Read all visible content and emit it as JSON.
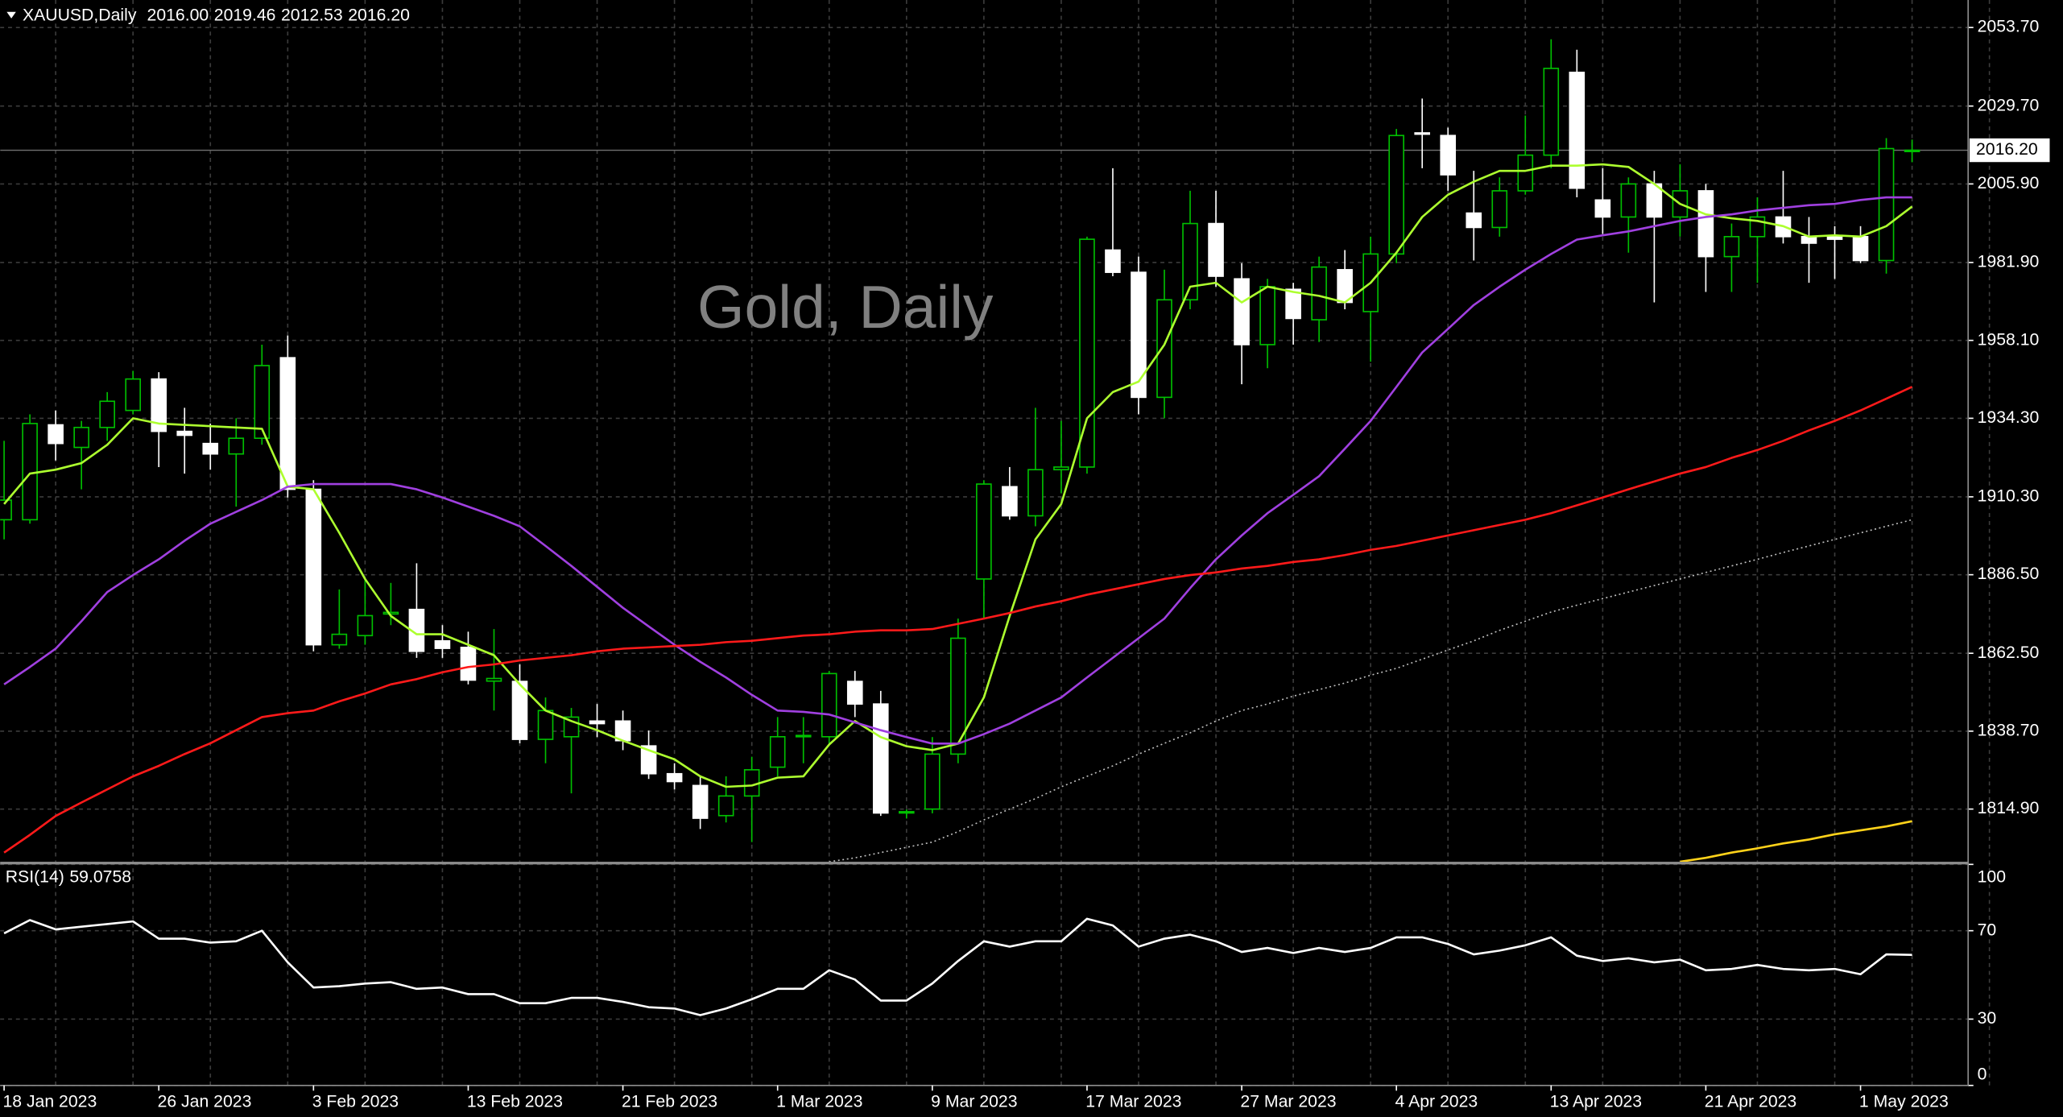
{
  "chart_data": [
    {
      "type": "candlestick",
      "title": "Gold, Daily",
      "symbol": "XAUUSD,Daily",
      "ohlc_labels": [
        "2016.00",
        "2019.46",
        "2012.53",
        "2016.20"
      ],
      "categories": [
        "18 Jan 2023",
        null,
        null,
        null,
        null,
        null,
        "26 Jan 2023",
        null,
        null,
        null,
        null,
        null,
        "3 Feb 2023",
        null,
        null,
        null,
        null,
        null,
        "13 Feb 2023",
        null,
        null,
        null,
        null,
        null,
        "21 Feb 2023",
        null,
        null,
        null,
        null,
        null,
        "1 Mar 2023",
        null,
        null,
        null,
        null,
        null,
        "9 Mar 2023",
        null,
        null,
        null,
        null,
        null,
        "17 Mar 2023",
        null,
        null,
        null,
        null,
        null,
        "27 Mar 2023",
        null,
        null,
        null,
        null,
        null,
        "4 Apr 2023",
        null,
        null,
        null,
        null,
        null,
        "13 Apr 2023",
        null,
        null,
        null,
        null,
        null,
        "21 Apr 2023",
        null,
        null,
        null,
        null,
        null,
        "1 May 2023",
        null,
        null
      ],
      "open": [
        1903.3,
        1903.3,
        1932.3,
        1925.4,
        1931.5,
        1936.7,
        1946.3,
        1930.3,
        1926.6,
        1923.4,
        1928.2,
        1952.8,
        1912.6,
        1865.1,
        1867.9,
        1874.5,
        1875.9,
        1866.3,
        1864.3,
        1854.0,
        1853.9,
        1836.2,
        1837.0,
        1841.8,
        1841.8,
        1834.2,
        1825.7,
        1822.1,
        1812.9,
        1818.9,
        1827.7,
        1837.0,
        1837.0,
        1853.9,
        1847.0,
        1813.7,
        1814.9,
        1831.7,
        1885.2,
        1913.4,
        1904.5,
        1918.6,
        1919.4,
        1985.7,
        1978.9,
        1940.7,
        1970.5,
        1993.8,
        1976.9,
        1956.8,
        1973.7,
        1964.4,
        1979.7,
        1966.9,
        1984.5,
        2021.5,
        2020.7,
        1997.0,
        1992.6,
        2003.8,
        2014.7,
        2040.0,
        2001.0,
        1995.8,
        2005.9,
        1995.8,
        2003.8,
        1983.7,
        1989.8,
        1995.8,
        1989.8,
        1989.8,
        1989.8,
        1982.5,
        2016.0
      ],
      "high": [
        1927.4,
        1935.5,
        1936.7,
        1933.5,
        1942.3,
        1948.8,
        1948.4,
        1937.5,
        1932.7,
        1934.3,
        1956.8,
        1959.6,
        1915.4,
        1882.0,
        1885.2,
        1884.0,
        1890.0,
        1871.1,
        1869.1,
        1869.9,
        1859.1,
        1849.0,
        1845.8,
        1847.0,
        1845.0,
        1838.9,
        1828.9,
        1824.9,
        1824.9,
        1830.9,
        1843.0,
        1843.0,
        1857.1,
        1857.1,
        1851.0,
        1814.8,
        1836.9,
        1873.1,
        1915.4,
        1919.4,
        1937.5,
        1933.5,
        1989.8,
        2010.7,
        1983.7,
        1979.7,
        2003.8,
        2003.8,
        1981.7,
        1976.9,
        1975.7,
        1983.7,
        1985.7,
        1989.8,
        2022.7,
        2032.0,
        2023.1,
        2009.9,
        2007.9,
        2026.8,
        2050.1,
        2046.9,
        2010.7,
        2007.9,
        2009.9,
        2011.9,
        2005.9,
        1993.8,
        2001.8,
        2009.9,
        1995.8,
        1993.0,
        1993.0,
        2019.9,
        2019.46
      ],
      "low": [
        1897.3,
        1902.1,
        1921.4,
        1912.6,
        1927.4,
        1935.5,
        1919.4,
        1917.4,
        1918.6,
        1907.3,
        1926.2,
        1910.1,
        1863.1,
        1863.9,
        1865.1,
        1871.1,
        1861.1,
        1861.1,
        1853.0,
        1845.0,
        1835.0,
        1828.9,
        1819.7,
        1836.9,
        1832.9,
        1824.1,
        1820.9,
        1808.8,
        1810.8,
        1804.8,
        1824.9,
        1828.9,
        1835.0,
        1843.0,
        1812.8,
        1812.0,
        1813.6,
        1828.9,
        1873.1,
        1903.3,
        1901.3,
        1911.4,
        1917.4,
        1977.7,
        1935.5,
        1934.3,
        1967.6,
        1974.5,
        1944.7,
        1949.6,
        1956.8,
        1957.6,
        1967.6,
        1951.6,
        1981.7,
        2010.7,
        2003.8,
        1982.5,
        1989.8,
        2002.6,
        2010.7,
        2001.8,
        1990.6,
        1984.9,
        1969.7,
        1989.8,
        1972.9,
        1972.9,
        1975.7,
        1987.7,
        1975.7,
        1976.9,
        1981.7,
        1978.5,
        2012.53
      ],
      "close": [
        1909.3,
        1932.7,
        1926.6,
        1931.5,
        1939.5,
        1946.3,
        1930.3,
        1929.1,
        1923.4,
        1928.2,
        1950.4,
        1912.6,
        1865.1,
        1868.3,
        1874.0,
        1875.0,
        1863.1,
        1864.0,
        1854.3,
        1854.8,
        1836.2,
        1845.0,
        1843.0,
        1841.0,
        1835.8,
        1825.7,
        1823.3,
        1812.1,
        1818.9,
        1826.9,
        1837.0,
        1837.4,
        1856.3,
        1847.0,
        1813.7,
        1814.1,
        1831.7,
        1867.1,
        1914.2,
        1904.5,
        1918.6,
        1919.4,
        1989.0,
        1978.9,
        1940.7,
        1970.5,
        1993.8,
        1977.7,
        1956.8,
        1974.5,
        1964.8,
        1980.5,
        1969.7,
        1984.5,
        2020.7,
        2021.1,
        2008.7,
        1992.6,
        2003.8,
        2014.7,
        2041.2,
        2004.6,
        1995.8,
        2005.9,
        1995.8,
        2003.8,
        1983.7,
        1989.8,
        1995.8,
        1989.8,
        1987.8,
        1989.0,
        1982.5,
        2016.7,
        2016.2
      ],
      "bull_color": "#00c000",
      "bear_color": "#ffffff",
      "series": [
        {
          "color": "#adff2f",
          "values": [
            1908.1,
            1917.4,
            1918.6,
            1920.6,
            1926.2,
            1934.3,
            1932.7,
            1932.3,
            1931.9,
            1931.5,
            1931.1,
            1913.4,
            1912.6,
            1899.3,
            1885.2,
            1873.9,
            1868.3,
            1868.3,
            1865.1,
            1861.9,
            1853.0,
            1845.0,
            1841.8,
            1839.0,
            1835.8,
            1832.9,
            1830.1,
            1824.9,
            1821.7,
            1822.1,
            1824.5,
            1824.9,
            1834.6,
            1841.8,
            1836.9,
            1834.1,
            1832.9,
            1834.9,
            1849.0,
            1873.9,
            1897.3,
            1908.1,
            1934.3,
            1942.3,
            1945.5,
            1956.8,
            1974.5,
            1975.7,
            1969.7,
            1974.5,
            1972.9,
            1971.7,
            1969.7,
            1975.7,
            1984.9,
            1995.8,
            2002.6,
            2006.6,
            2009.9,
            2009.9,
            2011.5,
            2011.5,
            2011.9,
            2011.1,
            2005.9,
            1999.8,
            1996.6,
            1995.4,
            1994.6,
            1993.0,
            1989.8,
            1990.2,
            1989.8,
            1993.0,
            1999.0
          ]
        },
        {
          "color": "#a040e0",
          "values": [
            1853.0,
            1858.3,
            1863.9,
            1872.3,
            1881.2,
            1886.4,
            1891.2,
            1896.9,
            1902.1,
            1905.7,
            1909.3,
            1913.4,
            1914.2,
            1914.2,
            1914.2,
            1914.2,
            1912.6,
            1910.1,
            1907.3,
            1904.5,
            1901.3,
            1895.3,
            1889.2,
            1882.8,
            1876.4,
            1870.7,
            1865.1,
            1859.9,
            1855.1,
            1849.8,
            1845.0,
            1844.6,
            1843.8,
            1841.4,
            1839.0,
            1836.9,
            1834.9,
            1834.9,
            1837.8,
            1841.0,
            1845.0,
            1849.0,
            1855.1,
            1861.1,
            1867.1,
            1873.1,
            1882.4,
            1891.2,
            1898.5,
            1905.3,
            1910.9,
            1916.6,
            1925.0,
            1933.5,
            1943.9,
            1954.4,
            1961.6,
            1968.9,
            1974.5,
            1979.7,
            1984.5,
            1988.9,
            1990.2,
            1991.4,
            1993.0,
            1994.6,
            1995.8,
            1996.6,
            1997.8,
            1998.6,
            1999.4,
            1999.8,
            2001.0,
            2001.8,
            2001.8
          ]
        },
        {
          "color": "#ff1a1a",
          "values": [
            1801.6,
            1807.0,
            1812.8,
            1816.9,
            1820.9,
            1824.9,
            1828.1,
            1831.7,
            1835.0,
            1839.0,
            1843.0,
            1844.2,
            1845.0,
            1847.8,
            1850.2,
            1853.0,
            1854.6,
            1856.7,
            1858.3,
            1859.1,
            1860.3,
            1861.1,
            1861.9,
            1863.1,
            1863.9,
            1864.3,
            1864.7,
            1865.1,
            1865.9,
            1866.3,
            1867.1,
            1867.9,
            1868.3,
            1869.1,
            1869.5,
            1869.5,
            1869.9,
            1871.5,
            1873.1,
            1874.8,
            1876.8,
            1878.4,
            1880.4,
            1882.0,
            1883.6,
            1885.2,
            1886.4,
            1887.2,
            1888.4,
            1889.2,
            1890.4,
            1891.2,
            1892.5,
            1894.1,
            1895.3,
            1896.9,
            1898.5,
            1900.1,
            1901.7,
            1903.3,
            1905.3,
            1907.7,
            1910.1,
            1912.6,
            1915.0,
            1917.4,
            1919.4,
            1922.2,
            1924.6,
            1927.4,
            1930.6,
            1933.5,
            1936.7,
            1940.3,
            1943.9
          ]
        },
        {
          "color": "#c0c0c0",
          "style": "dotted",
          "values": [
            null,
            null,
            null,
            null,
            null,
            null,
            null,
            null,
            null,
            null,
            null,
            null,
            null,
            null,
            null,
            null,
            null,
            null,
            null,
            null,
            null,
            null,
            null,
            null,
            null,
            null,
            null,
            null,
            null,
            null,
            null,
            null,
            1798.8,
            1800.0,
            1801.6,
            1803.2,
            1804.8,
            1808.0,
            1811.6,
            1814.9,
            1818.1,
            1821.7,
            1824.9,
            1828.1,
            1831.7,
            1835.0,
            1838.2,
            1841.8,
            1845.0,
            1847.0,
            1849.4,
            1851.4,
            1853.4,
            1855.8,
            1857.9,
            1860.7,
            1863.5,
            1866.3,
            1869.5,
            1872.3,
            1875.1,
            1877.2,
            1879.2,
            1881.2,
            1883.2,
            1885.2,
            1887.2,
            1889.2,
            1891.2,
            1893.3,
            1895.3,
            1897.3,
            1899.3,
            1901.3,
            1903.3
          ]
        },
        {
          "color": "#ffd21a",
          "values": [
            null,
            null,
            null,
            null,
            null,
            null,
            null,
            null,
            null,
            null,
            null,
            null,
            null,
            null,
            null,
            null,
            null,
            null,
            null,
            null,
            null,
            null,
            null,
            null,
            null,
            null,
            null,
            null,
            null,
            null,
            null,
            null,
            null,
            null,
            null,
            null,
            null,
            null,
            null,
            null,
            null,
            null,
            null,
            null,
            null,
            null,
            null,
            null,
            null,
            null,
            null,
            null,
            null,
            null,
            null,
            null,
            null,
            null,
            null,
            null,
            null,
            null,
            null,
            null,
            null,
            1798.8,
            1800.0,
            1801.6,
            1802.9,
            1804.4,
            1805.6,
            1807.2,
            1808.4,
            1809.6,
            1811.2
          ]
        }
      ],
      "last_price": {
        "value": 2016.2,
        "label": "2016.20"
      },
      "ylim": [
        1798.8,
        2062.1
      ],
      "yticks": [
        {
          "value": 2053.7,
          "label": "2053.70"
        },
        {
          "value": 2029.7,
          "label": "2029.70"
        },
        {
          "value": 2005.9,
          "label": "2005.90"
        },
        {
          "value": 1981.9,
          "label": "1981.90"
        },
        {
          "value": 1958.1,
          "label": "1958.10"
        },
        {
          "value": 1934.3,
          "label": "1934.30"
        },
        {
          "value": 1910.3,
          "label": "1910.30"
        },
        {
          "value": 1886.5,
          "label": "1886.50"
        },
        {
          "value": 1862.5,
          "label": "1862.50"
        },
        {
          "value": 1838.7,
          "label": "1838.70"
        },
        {
          "value": 1814.9,
          "label": "1814.90"
        }
      ],
      "grid": true
    },
    {
      "type": "line",
      "title": "RSI(14)",
      "series": [
        {
          "color": "#ffffff",
          "values": [
            68.8,
            74.8,
            70.6,
            71.8,
            73.0,
            74.2,
            66.4,
            66.4,
            64.6,
            65.2,
            70.0,
            55.7,
            44.3,
            44.9,
            46.1,
            46.7,
            43.7,
            44.3,
            41.3,
            41.3,
            37.2,
            37.2,
            39.6,
            39.6,
            37.8,
            35.4,
            34.8,
            31.8,
            34.8,
            39.0,
            43.7,
            43.7,
            52.1,
            47.9,
            38.4,
            38.4,
            46.1,
            56.3,
            65.2,
            62.8,
            65.2,
            65.2,
            75.4,
            72.4,
            62.8,
            66.4,
            68.2,
            65.2,
            60.4,
            62.2,
            59.9,
            62.2,
            60.4,
            62.2,
            67.0,
            67.0,
            64.0,
            59.3,
            61.0,
            63.4,
            67.0,
            58.7,
            56.3,
            57.5,
            55.7,
            56.9,
            52.1,
            52.7,
            54.5,
            52.7,
            52.1,
            52.7,
            50.3,
            59.3,
            59.0758
          ]
        }
      ],
      "ylim": [
        0,
        100
      ],
      "yticks": [
        100,
        70,
        30,
        0
      ],
      "grid": true
    }
  ]
}
